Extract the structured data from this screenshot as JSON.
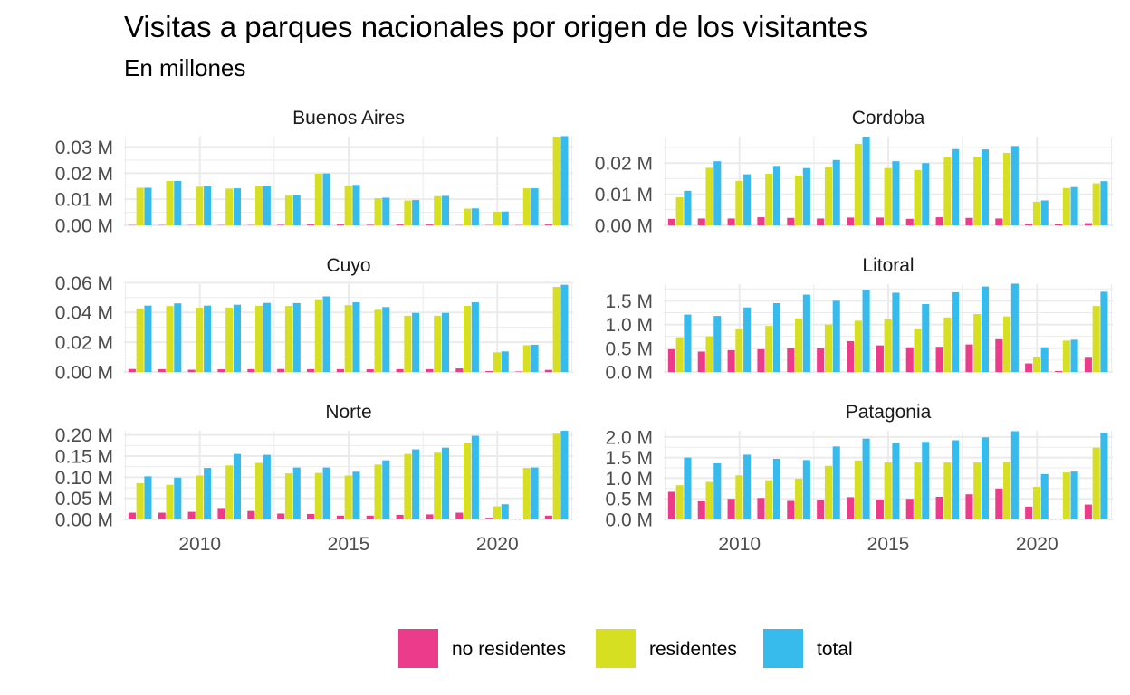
{
  "title": "Visitas a parques nacionales por origen de los visitantes",
  "subtitle": "En millones",
  "colors": {
    "no residentes": "#ED3B8C",
    "residentes": "#D7DF23",
    "total": "#37BBED",
    "grid": "#EBEBEB",
    "tick_text": "#4D4D4D"
  },
  "legend": {
    "position": "bottom",
    "items": [
      "no residentes",
      "residentes",
      "total"
    ]
  },
  "chart_data": {
    "type": "bar",
    "facet_layout": "3x2",
    "x": [
      2008,
      2009,
      2010,
      2011,
      2012,
      2013,
      2014,
      2015,
      2016,
      2017,
      2018,
      2019,
      2020,
      2021,
      2022
    ],
    "x_ticks": [
      2010,
      2015,
      2020
    ],
    "x_tick_labels": [
      "2010",
      "2015",
      "2020"
    ],
    "unit_suffix": " M",
    "grid": true,
    "panels": [
      {
        "name": "Buenos Aires",
        "ylim": [
          0,
          0.034
        ],
        "y_ticks": [
          0,
          0.01,
          0.02,
          0.03
        ],
        "y_tick_labels": [
          "0.00 M",
          "0.01 M",
          "0.02 M",
          "0.03 M"
        ],
        "series": [
          {
            "name": "no residentes",
            "values": [
              0.0001,
              0.0001,
              0.0001,
              0.0001,
              0.0001,
              0.0002,
              0.0003,
              0.0003,
              0.0002,
              0.0003,
              0.0003,
              0.0001,
              0.0001,
              0.0001,
              0.0003
            ]
          },
          {
            "name": "residentes",
            "values": [
              0.0144,
              0.017,
              0.0148,
              0.0141,
              0.0151,
              0.0114,
              0.0198,
              0.0153,
              0.0104,
              0.0095,
              0.0112,
              0.0064,
              0.0052,
              0.0142,
              0.034
            ]
          },
          {
            "name": "total",
            "values": [
              0.0144,
              0.017,
              0.0149,
              0.0142,
              0.0151,
              0.0115,
              0.0199,
              0.0155,
              0.0106,
              0.0097,
              0.0113,
              0.0065,
              0.0053,
              0.0142,
              0.0342
            ]
          }
        ]
      },
      {
        "name": "Cordoba",
        "ylim": [
          0,
          0.0285
        ],
        "y_ticks": [
          0,
          0.01,
          0.02
        ],
        "y_tick_labels": [
          "0.00 M",
          "0.01 M",
          "0.02 M"
        ],
        "series": [
          {
            "name": "no residentes",
            "values": [
              0.0021,
              0.0022,
              0.0022,
              0.0026,
              0.0024,
              0.0022,
              0.0025,
              0.0025,
              0.0021,
              0.0026,
              0.0024,
              0.0022,
              0.0006,
              0.0003,
              0.0007
            ]
          },
          {
            "name": "residentes",
            "values": [
              0.009,
              0.0185,
              0.0143,
              0.0166,
              0.016,
              0.0188,
              0.0262,
              0.0184,
              0.0178,
              0.0219,
              0.022,
              0.0233,
              0.0076,
              0.012,
              0.0135
            ]
          },
          {
            "name": "total",
            "values": [
              0.0111,
              0.0206,
              0.0164,
              0.0191,
              0.0184,
              0.021,
              0.0285,
              0.0206,
              0.02,
              0.0245,
              0.0244,
              0.0255,
              0.008,
              0.0123,
              0.0142
            ]
          }
        ]
      },
      {
        "name": "Cuyo",
        "ylim": [
          0,
          0.059
        ],
        "y_ticks": [
          0,
          0.02,
          0.04,
          0.06
        ],
        "y_tick_labels": [
          "0.00 M",
          "0.02 M",
          "0.04 M",
          "0.06 M"
        ],
        "series": [
          {
            "name": "no residentes",
            "values": [
              0.002,
              0.0019,
              0.0015,
              0.0018,
              0.0019,
              0.002,
              0.0019,
              0.0019,
              0.0018,
              0.0019,
              0.0019,
              0.0024,
              0.0006,
              0.0003,
              0.0014
            ]
          },
          {
            "name": "residentes",
            "values": [
              0.0427,
              0.0443,
              0.0432,
              0.0433,
              0.0445,
              0.0443,
              0.0488,
              0.0449,
              0.0418,
              0.0378,
              0.0378,
              0.0444,
              0.0132,
              0.018,
              0.0572
            ]
          },
          {
            "name": "total",
            "values": [
              0.0446,
              0.0461,
              0.0446,
              0.0452,
              0.0464,
              0.0463,
              0.0508,
              0.0468,
              0.0436,
              0.0397,
              0.0397,
              0.0468,
              0.0138,
              0.0183,
              0.0586
            ]
          }
        ]
      },
      {
        "name": "Litoral",
        "ylim": [
          0,
          1.85
        ],
        "y_ticks": [
          0,
          0.5,
          1.0,
          1.5
        ],
        "y_tick_labels": [
          "0.0 M",
          "0.5 M",
          "1.0 M",
          "1.5 M"
        ],
        "series": [
          {
            "name": "no residentes",
            "values": [
              0.48,
              0.43,
              0.46,
              0.48,
              0.5,
              0.5,
              0.65,
              0.56,
              0.52,
              0.53,
              0.58,
              0.69,
              0.18,
              0.02,
              0.3
            ]
          },
          {
            "name": "residentes",
            "values": [
              0.73,
              0.75,
              0.9,
              0.97,
              1.13,
              1.0,
              1.08,
              1.11,
              0.9,
              1.15,
              1.22,
              1.17,
              0.31,
              0.66,
              1.39
            ]
          },
          {
            "name": "total",
            "values": [
              1.21,
              1.18,
              1.36,
              1.45,
              1.63,
              1.5,
              1.73,
              1.67,
              1.43,
              1.68,
              1.8,
              1.86,
              0.52,
              0.68,
              1.69
            ]
          }
        ]
      },
      {
        "name": "Norte",
        "ylim": [
          0,
          0.21
        ],
        "y_ticks": [
          0,
          0.05,
          0.1,
          0.15,
          0.2
        ],
        "y_tick_labels": [
          "0.00 M",
          "0.05 M",
          "0.10 M",
          "0.15 M",
          "0.20 M"
        ],
        "series": [
          {
            "name": "no residentes",
            "values": [
              0.016,
              0.016,
              0.018,
              0.027,
              0.02,
              0.014,
              0.013,
              0.009,
              0.009,
              0.011,
              0.012,
              0.016,
              0.004,
              0.002,
              0.009
            ]
          },
          {
            "name": "residentes",
            "values": [
              0.086,
              0.082,
              0.104,
              0.128,
              0.134,
              0.109,
              0.11,
              0.104,
              0.13,
              0.155,
              0.158,
              0.182,
              0.031,
              0.122,
              0.203
            ]
          },
          {
            "name": "total",
            "values": [
              0.102,
              0.099,
              0.122,
              0.155,
              0.153,
              0.123,
              0.123,
              0.113,
              0.14,
              0.166,
              0.17,
              0.198,
              0.036,
              0.123,
              0.21
            ]
          }
        ]
      },
      {
        "name": "Patagonia",
        "ylim": [
          0,
          2.15
        ],
        "y_ticks": [
          0,
          0.5,
          1.0,
          1.5,
          2.0
        ],
        "y_tick_labels": [
          "0.0 M",
          "0.5 M",
          "1.0 M",
          "1.5 M",
          "2.0 M"
        ],
        "series": [
          {
            "name": "no residentes",
            "values": [
              0.67,
              0.44,
              0.5,
              0.52,
              0.45,
              0.47,
              0.54,
              0.48,
              0.5,
              0.55,
              0.61,
              0.75,
              0.31,
              0.02,
              0.36
            ]
          },
          {
            "name": "residentes",
            "values": [
              0.83,
              0.91,
              1.07,
              0.95,
              0.99,
              1.3,
              1.43,
              1.38,
              1.38,
              1.38,
              1.38,
              1.39,
              0.79,
              1.14,
              1.74
            ]
          },
          {
            "name": "total",
            "values": [
              1.5,
              1.36,
              1.57,
              1.47,
              1.44,
              1.77,
              1.96,
              1.86,
              1.88,
              1.92,
              1.99,
              2.14,
              1.1,
              1.16,
              2.1
            ]
          }
        ]
      }
    ]
  }
}
